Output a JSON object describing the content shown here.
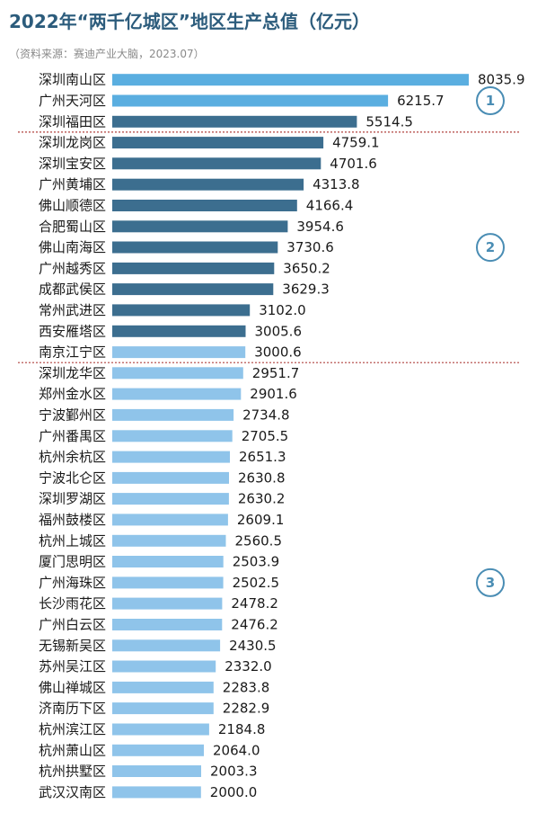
{
  "title": "2022年“两千亿城区”地区生产总值（亿元）",
  "source": "（资料来源：赛迪产业大脑，2023.07）",
  "chart_data": {
    "type": "bar",
    "orientation": "horizontal",
    "title": "2022年“两千亿城区”地区生产总值（亿元）",
    "xlabel": "",
    "ylabel": "",
    "xlim": [
      0,
      8035.9
    ],
    "grid": false,
    "categories": [
      "深圳南山区",
      "广州天河区",
      "深圳福田区",
      "深圳龙岗区",
      "深圳宝安区",
      "广州黄埔区",
      "佛山顺德区",
      "合肥蜀山区",
      "佛山南海区",
      "广州越秀区",
      "成都武侯区",
      "常州武进区",
      "西安雁塔区",
      "南京江宁区",
      "深圳龙华区",
      "郑州金水区",
      "宁波鄞州区",
      "广州番禺区",
      "杭州余杭区",
      "宁波北仑区",
      "深圳罗湖区",
      "福州鼓楼区",
      "杭州上城区",
      "厦门思明区",
      "广州海珠区",
      "长沙雨花区",
      "广州白云区",
      "无锡新吴区",
      "苏州吴江区",
      "佛山禅城区",
      "济南历下区",
      "杭州滨江区",
      "杭州萧山区",
      "杭州拱墅区",
      "武汉汉南区"
    ],
    "values": [
      8035.9,
      6215.7,
      5514.5,
      4759.1,
      4701.6,
      4313.8,
      4166.4,
      3954.6,
      3730.6,
      3650.2,
      3629.3,
      3102.0,
      3005.6,
      3000.6,
      2951.7,
      2901.6,
      2734.8,
      2705.5,
      2651.3,
      2630.8,
      2630.2,
      2609.1,
      2560.5,
      2503.9,
      2502.5,
      2478.2,
      2476.2,
      2430.5,
      2332.0,
      2283.8,
      2282.9,
      2184.8,
      2064.0,
      2003.3,
      2000.0
    ],
    "bar_colors": [
      "#5aaee0",
      "#5aaee0",
      "#3c6e8f",
      "#3c6e8f",
      "#3c6e8f",
      "#3c6e8f",
      "#3c6e8f",
      "#3c6e8f",
      "#3c6e8f",
      "#3c6e8f",
      "#3c6e8f",
      "#3c6e8f",
      "#3c6e8f",
      "#8fc4ea",
      "#8fc4ea",
      "#8fc4ea",
      "#8fc4ea",
      "#8fc4ea",
      "#8fc4ea",
      "#8fc4ea",
      "#8fc4ea",
      "#8fc4ea",
      "#8fc4ea",
      "#8fc4ea",
      "#8fc4ea",
      "#8fc4ea",
      "#8fc4ea",
      "#8fc4ea",
      "#8fc4ea",
      "#8fc4ea",
      "#8fc4ea",
      "#8fc4ea",
      "#8fc4ea",
      "#8fc4ea",
      "#8fc4ea"
    ],
    "groups": [
      {
        "label": "1",
        "first": 0,
        "last": 2
      },
      {
        "label": "2",
        "first": 3,
        "last": 13
      },
      {
        "label": "3",
        "first": 14,
        "last": 34
      }
    ],
    "group_color": "#4a8db4",
    "divider_color": "#b0413e"
  }
}
